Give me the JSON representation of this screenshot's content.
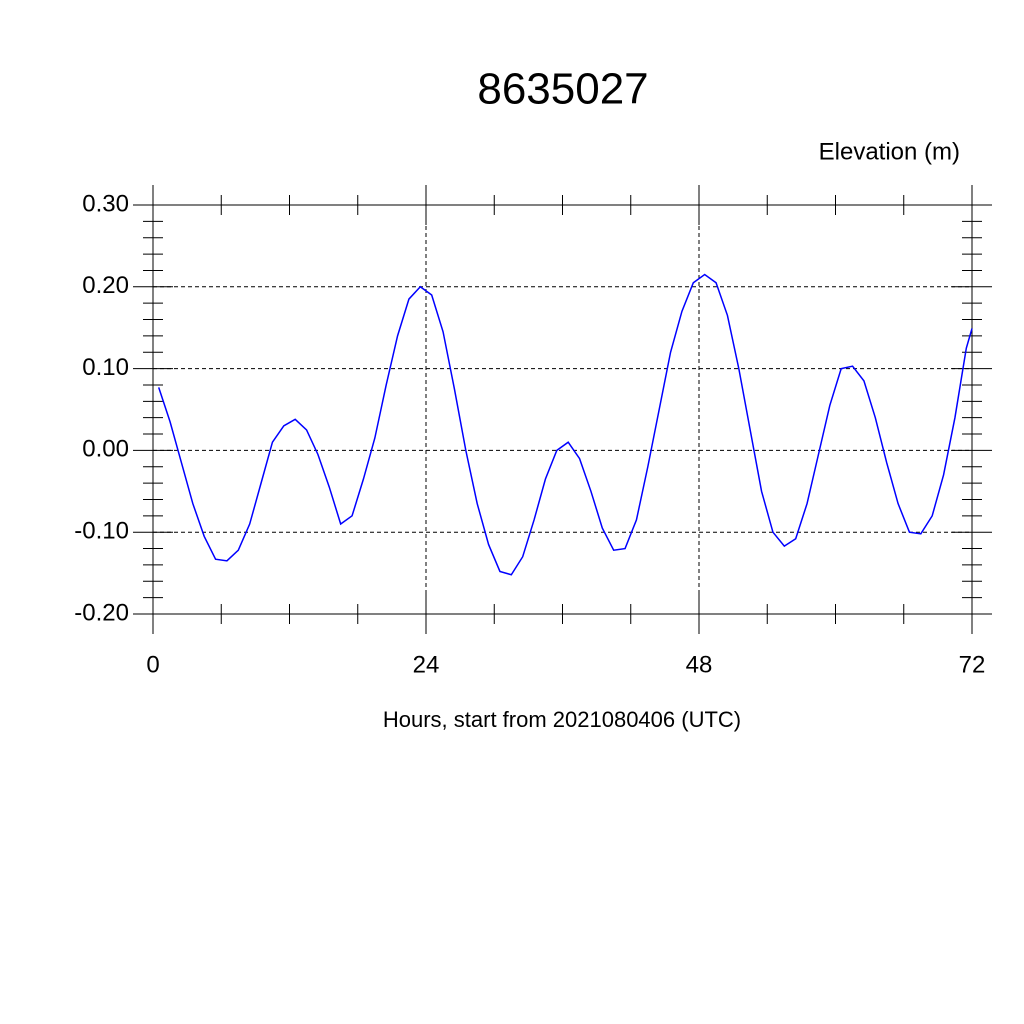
{
  "chart_data": {
    "type": "line",
    "title": "8635027",
    "y_label": "Elevation (m)",
    "x_label": "Hours, start from 2021080406 (UTC)",
    "xlim": [
      0,
      72
    ],
    "xticks": [
      0,
      24,
      48,
      72
    ],
    "ylim": [
      -0.2,
      0.3
    ],
    "yticks": [
      {
        "value": -0.2,
        "label": "-0.20"
      },
      {
        "value": -0.1,
        "label": "-0.10"
      },
      {
        "value": 0,
        "label": "0.00"
      },
      {
        "value": 0.1,
        "label": "0.10"
      },
      {
        "value": 0.2,
        "label": "0.20"
      },
      {
        "value": 0.3,
        "label": "0.30"
      }
    ],
    "grid": true,
    "x": [
      0.5,
      1.5,
      2.5,
      3.5,
      4.5,
      5.5,
      6.5,
      7.5,
      8.5,
      9.5,
      10.5,
      11.5,
      12.5,
      13.5,
      14.5,
      15.5,
      16.5,
      17.5,
      18.5,
      19.5,
      20.5,
      21.5,
      22.5,
      23.5,
      24.5,
      25.5,
      26.5,
      27.5,
      28.5,
      29.5,
      30.5,
      31.5,
      32.5,
      33.5,
      34.5,
      35.5,
      36.5,
      37.5,
      38.5,
      39.5,
      40.5,
      41.5,
      42.5,
      43.5,
      44.5,
      45.5,
      46.5,
      47.5,
      48.5,
      49.5,
      50.5,
      51.5,
      52.5,
      53.5,
      54.5,
      55.5,
      56.5,
      57.5,
      58.5,
      59.5,
      60.5,
      61.5,
      62.5,
      63.5,
      64.5,
      65.5,
      66.5,
      67.5,
      68.5,
      69.5,
      70.5,
      71.5,
      72
    ],
    "series": [
      {
        "color": "#0000ff",
        "values": [
          0.077,
          0.035,
          -0.015,
          -0.065,
          -0.105,
          -0.133,
          -0.135,
          -0.122,
          -0.09,
          -0.04,
          0.01,
          0.03,
          0.038,
          0.025,
          -0.005,
          -0.045,
          -0.09,
          -0.08,
          -0.035,
          0.015,
          0.08,
          0.14,
          0.185,
          0.2,
          0.19,
          0.145,
          0.075,
          0.0,
          -0.065,
          -0.115,
          -0.148,
          -0.152,
          -0.13,
          -0.085,
          -0.035,
          0.0,
          0.01,
          -0.01,
          -0.05,
          -0.095,
          -0.122,
          -0.12,
          -0.085,
          -0.02,
          0.05,
          0.12,
          0.17,
          0.205,
          0.215,
          0.205,
          0.165,
          0.1,
          0.025,
          -0.05,
          -0.1,
          -0.117,
          -0.108,
          -0.065,
          -0.005,
          0.055,
          0.1,
          0.103,
          0.085,
          0.04,
          -0.015,
          -0.065,
          -0.1,
          -0.102,
          -0.08,
          -0.03,
          0.04,
          0.125,
          0.149
        ]
      }
    ]
  }
}
